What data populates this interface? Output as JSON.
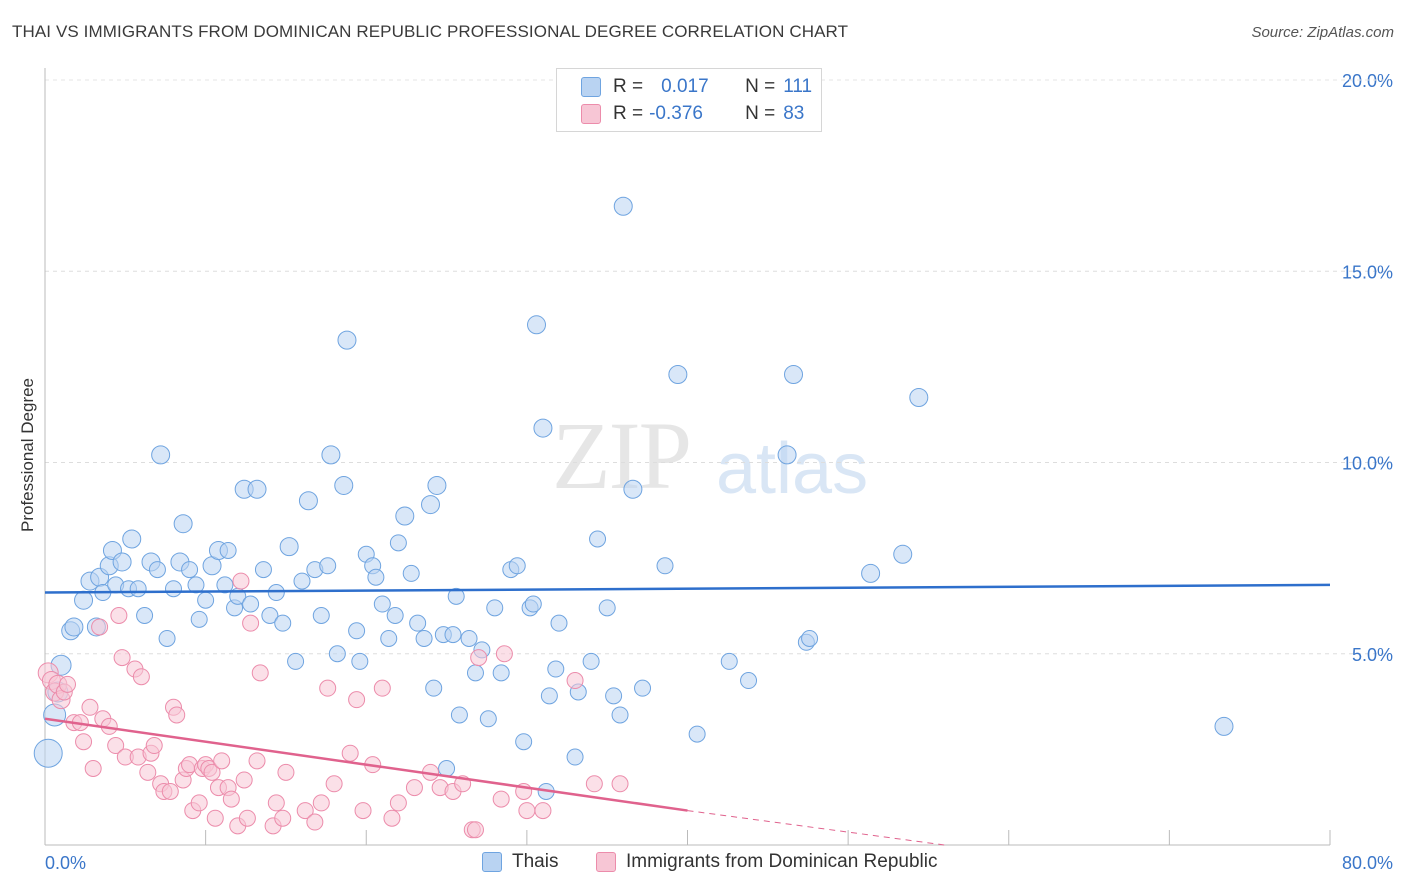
{
  "header": {
    "title": "THAI VS IMMIGRANTS FROM DOMINICAN REPUBLIC PROFESSIONAL DEGREE CORRELATION CHART",
    "source": "Source: ZipAtlas.com"
  },
  "watermark": {
    "zip": "ZIP",
    "atlas": "atlas"
  },
  "legend": {
    "rows": [
      {
        "r_label": "R =",
        "r_value": "0.017",
        "n_label": "N =",
        "n_value": "111",
        "color": "#a9c8ef"
      },
      {
        "r_label": "R =",
        "r_value": "-0.376",
        "n_label": "N =",
        "n_value": "83",
        "color": "#f5b8cc"
      }
    ]
  },
  "bottom_legend": {
    "items": [
      {
        "label": "Thais",
        "color": "#a9c8ef"
      },
      {
        "label": "Immigrants from Dominican Republic",
        "color": "#f5b8cc"
      }
    ]
  },
  "chart_data": {
    "type": "scatter",
    "title": "THAI VS IMMIGRANTS FROM DOMINICAN REPUBLIC PROFESSIONAL DEGREE CORRELATION CHART",
    "xlabel": "",
    "ylabel": "Professional Degree",
    "xlim": [
      0,
      80
    ],
    "ylim": [
      0,
      20
    ],
    "x_tick_labels": [
      "0.0%",
      "80.0%"
    ],
    "y_ticks": [
      5,
      10,
      15,
      20
    ],
    "y_tick_labels": [
      "5.0%",
      "10.0%",
      "15.0%",
      "20.0%"
    ],
    "grid": true,
    "legend_position": "top-center",
    "series": [
      {
        "name": "Thais",
        "color": "#6fa4e0",
        "fill": "#b9d3f2",
        "trend": {
          "x": [
            0,
            80
          ],
          "y": [
            6.6,
            6.8
          ],
          "color": "#2e6fcc"
        },
        "points": [
          [
            0.2,
            2.4,
            14
          ],
          [
            0.6,
            3.4,
            11
          ],
          [
            0.8,
            4.0,
            10
          ],
          [
            1.0,
            4.7,
            10
          ],
          [
            1.6,
            5.6,
            9
          ],
          [
            1.8,
            5.7,
            9
          ],
          [
            2.4,
            6.4,
            9
          ],
          [
            2.8,
            6.9,
            9
          ],
          [
            3.2,
            5.7,
            9
          ],
          [
            3.4,
            7.0,
            9
          ],
          [
            3.6,
            6.6,
            8
          ],
          [
            4.0,
            7.3,
            9
          ],
          [
            4.2,
            7.7,
            9
          ],
          [
            4.4,
            6.8,
            8
          ],
          [
            4.8,
            7.4,
            9
          ],
          [
            5.2,
            6.7,
            8
          ],
          [
            5.4,
            8.0,
            9
          ],
          [
            5.8,
            6.7,
            8
          ],
          [
            6.2,
            6.0,
            8
          ],
          [
            6.6,
            7.4,
            9
          ],
          [
            7.0,
            7.2,
            8
          ],
          [
            7.2,
            10.2,
            9
          ],
          [
            7.6,
            5.4,
            8
          ],
          [
            8.0,
            6.7,
            8
          ],
          [
            8.4,
            7.4,
            9
          ],
          [
            8.6,
            8.4,
            9
          ],
          [
            9.0,
            7.2,
            8
          ],
          [
            9.4,
            6.8,
            8
          ],
          [
            9.6,
            5.9,
            8
          ],
          [
            10.0,
            6.4,
            8
          ],
          [
            10.4,
            7.3,
            9
          ],
          [
            10.8,
            7.7,
            9
          ],
          [
            11.2,
            6.8,
            8
          ],
          [
            11.4,
            7.7,
            8
          ],
          [
            11.8,
            6.2,
            8
          ],
          [
            12.0,
            6.5,
            8
          ],
          [
            12.4,
            9.3,
            9
          ],
          [
            12.8,
            6.3,
            8
          ],
          [
            13.2,
            9.3,
            9
          ],
          [
            13.6,
            7.2,
            8
          ],
          [
            14.0,
            6.0,
            8
          ],
          [
            14.4,
            6.6,
            8
          ],
          [
            14.8,
            5.8,
            8
          ],
          [
            15.2,
            7.8,
            9
          ],
          [
            15.6,
            4.8,
            8
          ],
          [
            16.0,
            6.9,
            8
          ],
          [
            16.4,
            9.0,
            9
          ],
          [
            16.8,
            7.2,
            8
          ],
          [
            17.2,
            6.0,
            8
          ],
          [
            17.6,
            7.3,
            8
          ],
          [
            17.8,
            10.2,
            9
          ],
          [
            18.2,
            5.0,
            8
          ],
          [
            18.6,
            9.4,
            9
          ],
          [
            18.8,
            13.2,
            9
          ],
          [
            19.4,
            5.6,
            8
          ],
          [
            19.6,
            4.8,
            8
          ],
          [
            20.0,
            7.6,
            8
          ],
          [
            20.4,
            7.3,
            8
          ],
          [
            20.6,
            7.0,
            8
          ],
          [
            21.0,
            6.3,
            8
          ],
          [
            21.4,
            5.4,
            8
          ],
          [
            21.8,
            6.0,
            8
          ],
          [
            22.0,
            7.9,
            8
          ],
          [
            22.4,
            8.6,
            9
          ],
          [
            22.8,
            7.1,
            8
          ],
          [
            23.2,
            5.8,
            8
          ],
          [
            23.6,
            5.4,
            8
          ],
          [
            24.0,
            8.9,
            9
          ],
          [
            24.4,
            9.4,
            9
          ],
          [
            24.8,
            5.5,
            8
          ],
          [
            25.0,
            2.0,
            8
          ],
          [
            25.4,
            5.5,
            8
          ],
          [
            25.6,
            6.5,
            8
          ],
          [
            25.8,
            3.4,
            8
          ],
          [
            26.4,
            5.4,
            8
          ],
          [
            26.8,
            4.5,
            8
          ],
          [
            27.2,
            5.1,
            8
          ],
          [
            27.6,
            3.3,
            8
          ],
          [
            28.0,
            6.2,
            8
          ],
          [
            28.4,
            4.5,
            8
          ],
          [
            29.0,
            7.2,
            8
          ],
          [
            29.4,
            7.3,
            8
          ],
          [
            29.8,
            2.7,
            8
          ],
          [
            30.2,
            6.2,
            8
          ],
          [
            30.4,
            6.3,
            8
          ],
          [
            30.6,
            13.6,
            9
          ],
          [
            31.0,
            10.9,
            9
          ],
          [
            31.4,
            3.9,
            8
          ],
          [
            31.8,
            4.6,
            8
          ],
          [
            32.0,
            5.8,
            8
          ],
          [
            33.0,
            2.3,
            8
          ],
          [
            33.2,
            4.0,
            8
          ],
          [
            34.0,
            4.8,
            8
          ],
          [
            34.4,
            8.0,
            8
          ],
          [
            35.0,
            6.2,
            8
          ],
          [
            35.4,
            3.9,
            8
          ],
          [
            35.8,
            3.4,
            8
          ],
          [
            36.0,
            16.7,
            9
          ],
          [
            36.6,
            9.3,
            9
          ],
          [
            37.2,
            4.1,
            8
          ],
          [
            38.6,
            7.3,
            8
          ],
          [
            39.4,
            12.3,
            9
          ],
          [
            40.6,
            2.9,
            8
          ],
          [
            42.6,
            4.8,
            8
          ],
          [
            43.8,
            4.3,
            8
          ],
          [
            46.2,
            10.2,
            9
          ],
          [
            46.6,
            12.3,
            9
          ],
          [
            47.4,
            5.3,
            8
          ],
          [
            47.6,
            5.4,
            8
          ],
          [
            51.4,
            7.1,
            9
          ],
          [
            53.4,
            7.6,
            9
          ],
          [
            54.4,
            11.7,
            9
          ],
          [
            73.4,
            3.1,
            9
          ],
          [
            31.2,
            1.4,
            8
          ],
          [
            24.2,
            4.1,
            8
          ]
        ]
      },
      {
        "name": "Immigrants from Dominican Republic",
        "color": "#ec8cab",
        "fill": "#f7c6d5",
        "trend": {
          "x": [
            0,
            40
          ],
          "y": [
            3.3,
            0.9
          ],
          "color": "#e0628d",
          "dashed_extension": {
            "x": [
              40,
              56
            ],
            "y": [
              0.9,
              0.0
            ]
          }
        },
        "points": [
          [
            0.2,
            4.5,
            10
          ],
          [
            0.4,
            4.3,
            9
          ],
          [
            0.6,
            4.0,
            9
          ],
          [
            0.8,
            4.2,
            9
          ],
          [
            1.0,
            3.8,
            9
          ],
          [
            1.2,
            4.0,
            8
          ],
          [
            1.4,
            4.2,
            8
          ],
          [
            1.8,
            3.2,
            8
          ],
          [
            2.2,
            3.2,
            8
          ],
          [
            2.4,
            2.7,
            8
          ],
          [
            2.8,
            3.6,
            8
          ],
          [
            3.0,
            2.0,
            8
          ],
          [
            3.4,
            5.7,
            8
          ],
          [
            3.6,
            3.3,
            8
          ],
          [
            4.0,
            3.1,
            8
          ],
          [
            4.4,
            2.6,
            8
          ],
          [
            4.6,
            6.0,
            8
          ],
          [
            4.8,
            4.9,
            8
          ],
          [
            5.0,
            2.3,
            8
          ],
          [
            5.6,
            4.6,
            8
          ],
          [
            5.8,
            2.3,
            8
          ],
          [
            6.0,
            4.4,
            8
          ],
          [
            6.4,
            1.9,
            8
          ],
          [
            6.6,
            2.4,
            8
          ],
          [
            6.8,
            2.6,
            8
          ],
          [
            7.2,
            1.6,
            8
          ],
          [
            7.4,
            1.4,
            8
          ],
          [
            7.8,
            1.4,
            8
          ],
          [
            8.0,
            3.6,
            8
          ],
          [
            8.2,
            3.4,
            8
          ],
          [
            8.6,
            1.7,
            8
          ],
          [
            8.8,
            2.0,
            8
          ],
          [
            9.0,
            2.1,
            8
          ],
          [
            9.2,
            0.9,
            8
          ],
          [
            9.6,
            1.1,
            8
          ],
          [
            9.8,
            2.0,
            8
          ],
          [
            10.0,
            2.1,
            8
          ],
          [
            10.2,
            2.0,
            8
          ],
          [
            10.4,
            1.9,
            8
          ],
          [
            10.6,
            0.7,
            8
          ],
          [
            10.8,
            1.5,
            8
          ],
          [
            11.0,
            2.2,
            8
          ],
          [
            11.4,
            1.5,
            8
          ],
          [
            11.6,
            1.2,
            8
          ],
          [
            12.0,
            0.5,
            8
          ],
          [
            12.2,
            6.9,
            8
          ],
          [
            12.4,
            1.7,
            8
          ],
          [
            12.6,
            0.7,
            8
          ],
          [
            12.8,
            5.8,
            8
          ],
          [
            13.2,
            2.2,
            8
          ],
          [
            13.4,
            4.5,
            8
          ],
          [
            14.2,
            0.5,
            8
          ],
          [
            14.4,
            1.1,
            8
          ],
          [
            14.8,
            0.7,
            8
          ],
          [
            15.0,
            1.9,
            8
          ],
          [
            16.2,
            0.9,
            8
          ],
          [
            16.8,
            0.6,
            8
          ],
          [
            17.2,
            1.1,
            8
          ],
          [
            17.6,
            4.1,
            8
          ],
          [
            18.0,
            1.6,
            8
          ],
          [
            19.0,
            2.4,
            8
          ],
          [
            19.4,
            3.8,
            8
          ],
          [
            19.8,
            0.9,
            8
          ],
          [
            20.4,
            2.1,
            8
          ],
          [
            21.0,
            4.1,
            8
          ],
          [
            21.6,
            0.7,
            8
          ],
          [
            22.0,
            1.1,
            8
          ],
          [
            23.0,
            1.5,
            8
          ],
          [
            24.0,
            1.9,
            8
          ],
          [
            24.6,
            1.5,
            8
          ],
          [
            25.4,
            1.4,
            8
          ],
          [
            26.0,
            1.6,
            8
          ],
          [
            26.6,
            0.4,
            8
          ],
          [
            26.8,
            0.4,
            8
          ],
          [
            27.0,
            4.9,
            8
          ],
          [
            28.4,
            1.2,
            8
          ],
          [
            28.6,
            5.0,
            8
          ],
          [
            29.8,
            1.4,
            8
          ],
          [
            30.0,
            0.9,
            8
          ],
          [
            31.0,
            0.9,
            8
          ],
          [
            33.0,
            4.3,
            8
          ],
          [
            34.2,
            1.6,
            8
          ],
          [
            35.8,
            1.6,
            8
          ]
        ]
      }
    ]
  }
}
